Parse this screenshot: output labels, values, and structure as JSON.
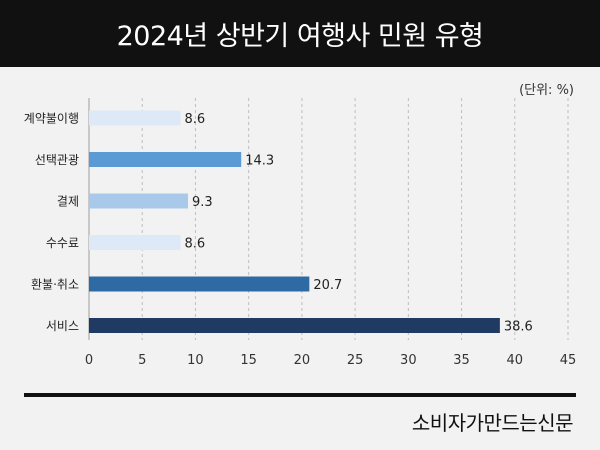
{
  "header": {
    "title": "2024년 상반기 여행사 민원 유형"
  },
  "unit_label": "(단위: %)",
  "source": "소비자가만드는신문",
  "chart_data": {
    "type": "bar",
    "orientation": "horizontal",
    "title": "2024년 상반기 여행사 민원 유형",
    "categories": [
      "계약불이행",
      "선택관광",
      "결제",
      "수수료",
      "환불·취소",
      "서비스"
    ],
    "values": [
      8.6,
      14.3,
      9.3,
      8.6,
      20.7,
      38.6
    ],
    "value_labels": [
      "8.6",
      "14.3",
      "9.3",
      "8.6",
      "20.7",
      "38.6"
    ],
    "bar_colors": [
      "#dde9f7",
      "#5b9bd5",
      "#a9c9ea",
      "#dde9f7",
      "#2e6aa3",
      "#1f3b63"
    ],
    "xlim": [
      0,
      45
    ],
    "xticks": [
      0,
      5,
      10,
      15,
      20,
      25,
      30,
      35,
      40,
      45
    ],
    "grid": "vertical dashed",
    "legend": "none",
    "xlabel": "",
    "ylabel": ""
  }
}
